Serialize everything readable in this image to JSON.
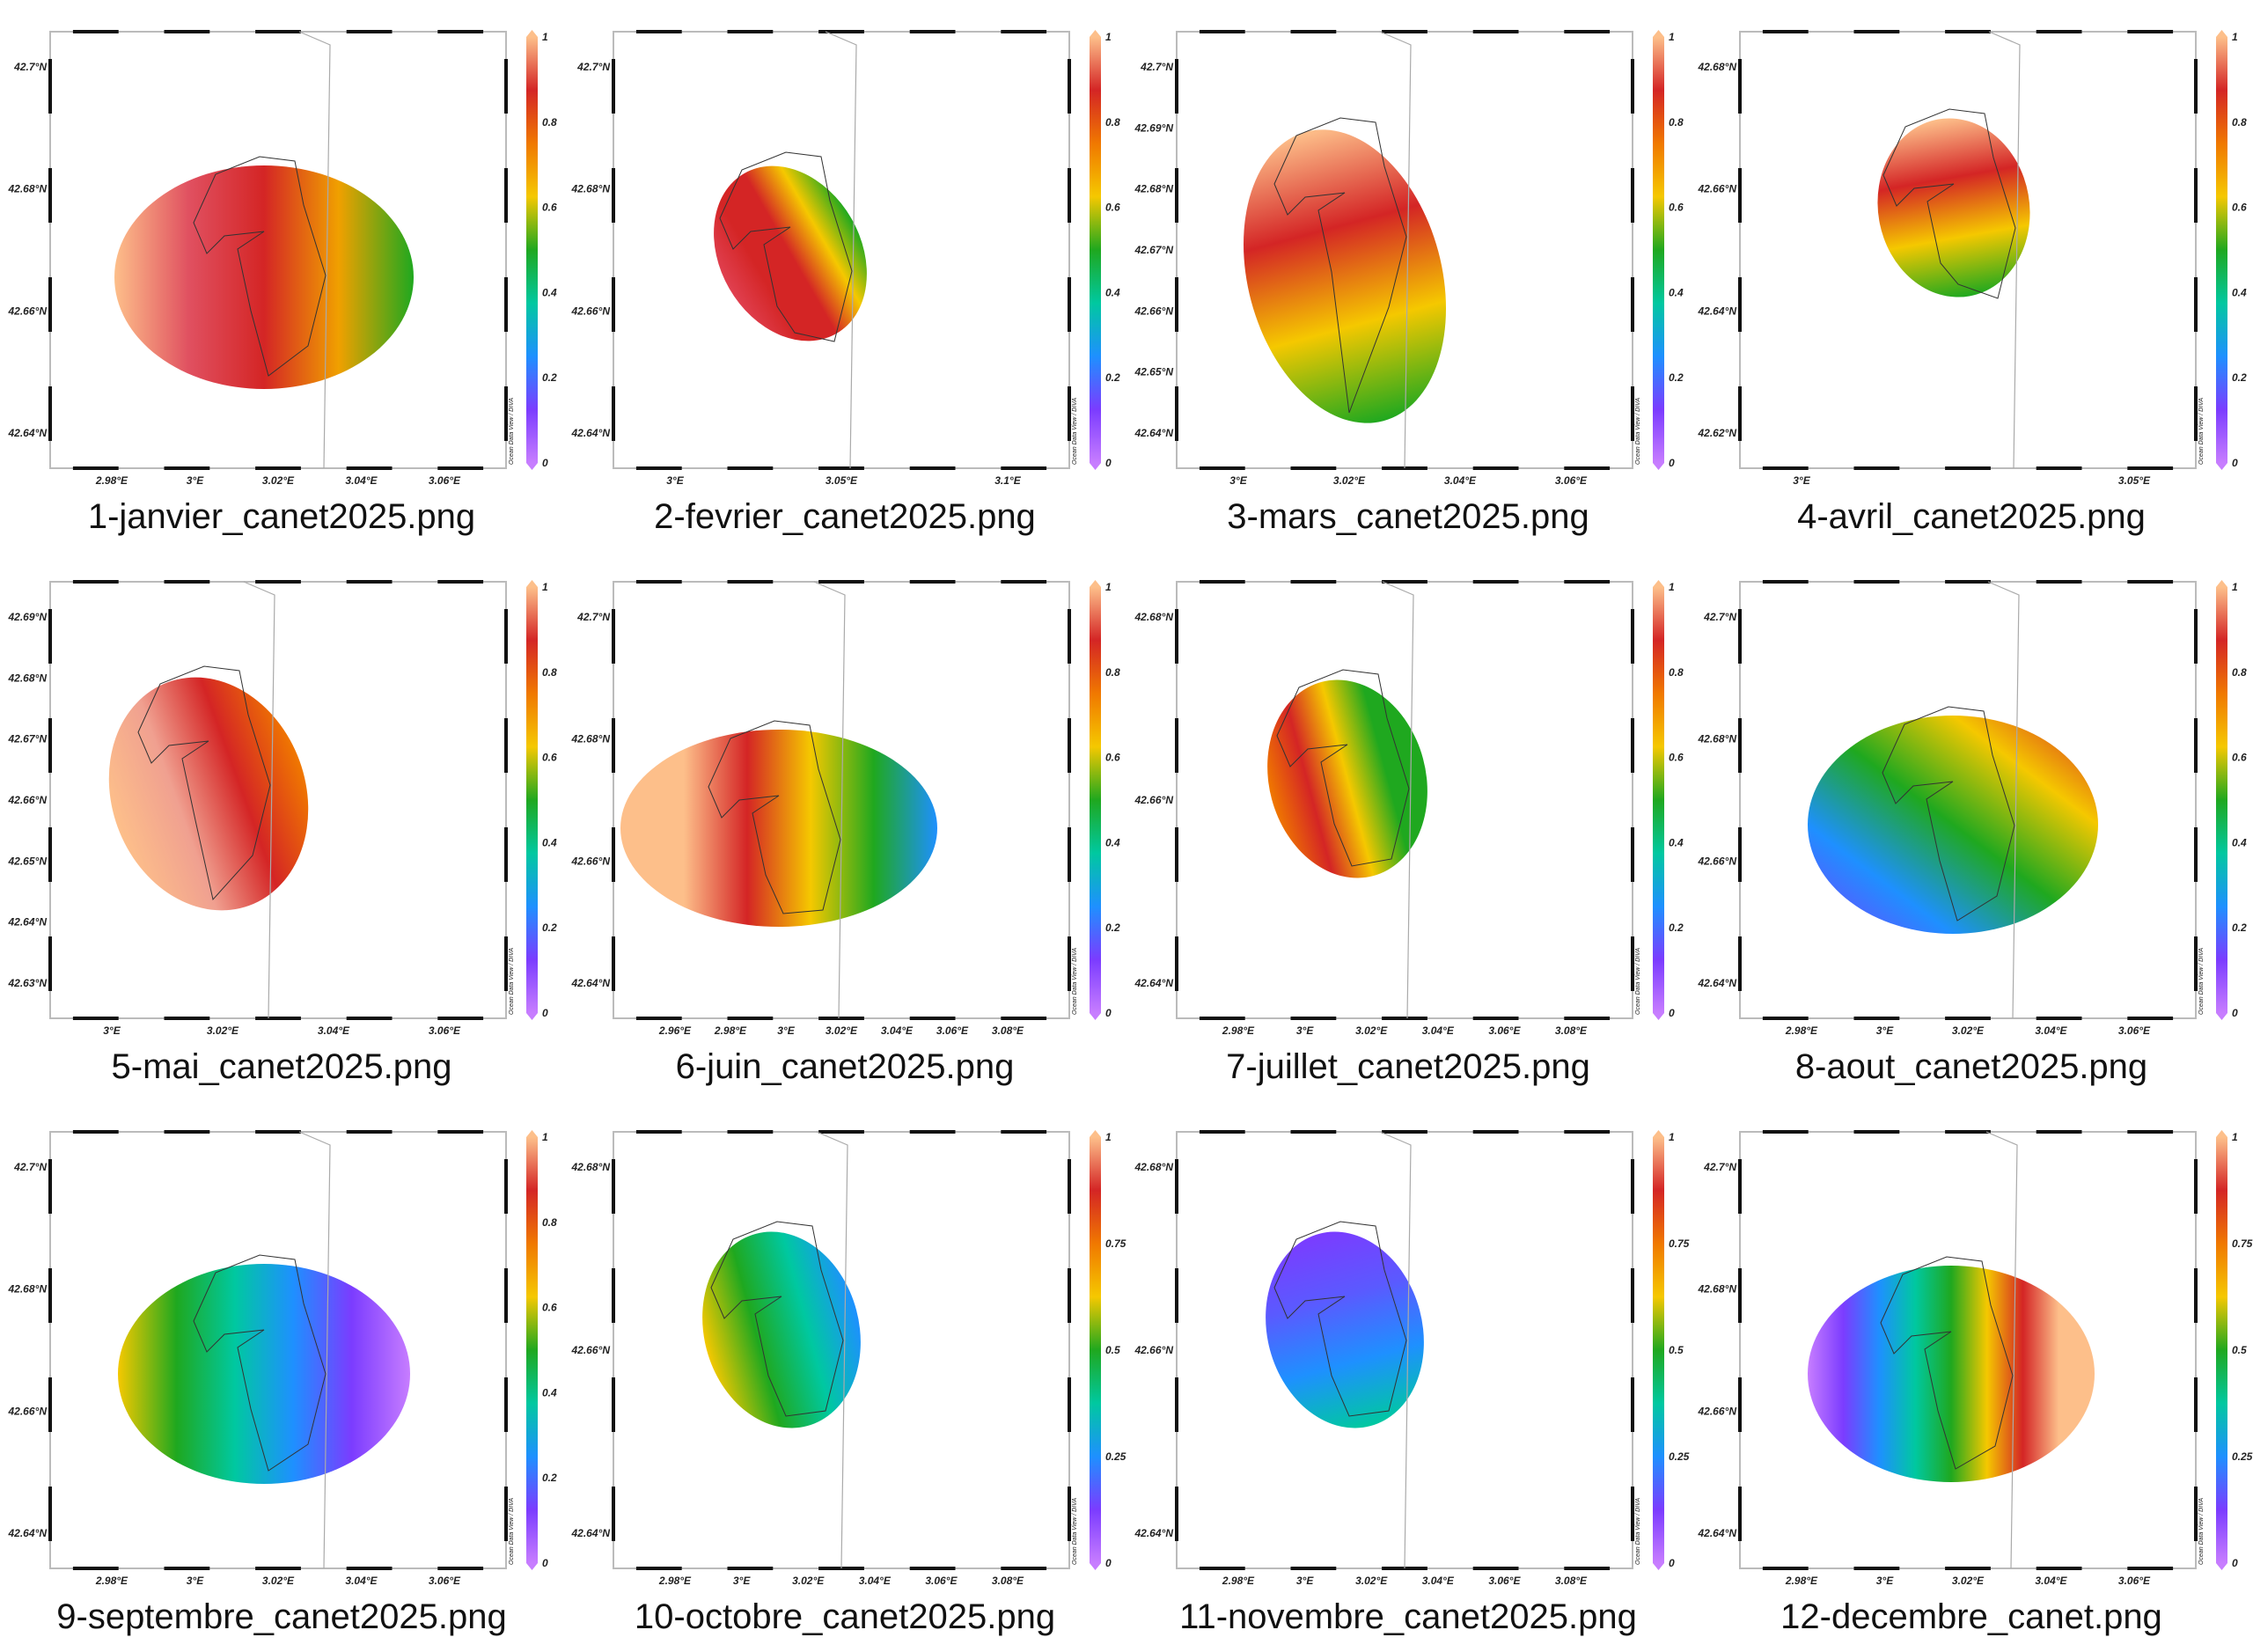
{
  "colorbar_colors": [
    "#c77dff",
    "#7b3cff",
    "#1e90ff",
    "#00c8a0",
    "#1fa81f",
    "#f5c800",
    "#f07800",
    "#d42525",
    "#fdbf8a"
  ],
  "credit": "Ocean Data View / DIVA",
  "panels": [
    {
      "caption": "1-janvier_canet2025.png",
      "lat": [
        "42.7°N",
        "42.68°N",
        "42.66°N",
        "42.64°N"
      ],
      "lon": [
        "2.98°E",
        "3°E",
        "3.02°E",
        "3.04°E",
        "3.06°E"
      ],
      "cbar": [
        "0",
        "0.2",
        "0.4",
        "0.6",
        "0.8",
        "1"
      ],
      "colors": [
        "#fdbf8a",
        "#e05060",
        "#d42525",
        "#f0a000",
        "#1fa81f"
      ]
    },
    {
      "caption": "2-fevrier_canet2025.png",
      "lat": [
        "42.7°N",
        "42.68°N",
        "42.66°N",
        "42.64°N"
      ],
      "lon": [
        "3°E",
        "3.05°E",
        "3.1°E"
      ],
      "cbar": [
        "0",
        "0.2",
        "0.4",
        "0.6",
        "0.8",
        "1"
      ],
      "colors": [
        "#e04050",
        "#d42525",
        "#d42525",
        "#f5c800",
        "#1fa81f"
      ]
    },
    {
      "caption": "3-mars_canet2025.png",
      "lat": [
        "42.7°N",
        "42.69°N",
        "42.68°N",
        "42.67°N",
        "42.66°N",
        "42.65°N",
        "42.64°N"
      ],
      "lon": [
        "3°E",
        "3.02°E",
        "3.04°E",
        "3.06°E"
      ],
      "cbar": [
        "0",
        "0.2",
        "0.4",
        "0.6",
        "0.8",
        "1"
      ],
      "colors": [
        "#fdbf8a",
        "#d42525",
        "#f5c800",
        "#1fa81f"
      ]
    },
    {
      "caption": "4-avril_canet2025.png",
      "lat": [
        "42.68°N",
        "42.66°N",
        "42.64°N",
        "42.62°N"
      ],
      "lon": [
        "3°E",
        "3.05°E"
      ],
      "cbar": [
        "0",
        "0.2",
        "0.4",
        "0.6",
        "0.8",
        "1"
      ],
      "colors": [
        "#fdbf8a",
        "#d42525",
        "#f5c800",
        "#1fa81f"
      ]
    },
    {
      "caption": "5-mai_canet2025.png",
      "lat": [
        "42.69°N",
        "42.68°N",
        "42.67°N",
        "42.66°N",
        "42.65°N",
        "42.64°N",
        "42.63°N"
      ],
      "lon": [
        "3°E",
        "3.02°E",
        "3.04°E",
        "3.06°E"
      ],
      "cbar": [
        "0",
        "0.2",
        "0.4",
        "0.6",
        "0.8",
        "1"
      ],
      "colors": [
        "#fdbf8a",
        "#f0a090",
        "#d42525",
        "#f07800"
      ]
    },
    {
      "caption": "6-juin_canet2025.png",
      "lat": [
        "42.7°N",
        "42.68°N",
        "42.66°N",
        "42.64°N"
      ],
      "lon": [
        "2.96°E",
        "2.98°E",
        "3°E",
        "3.02°E",
        "3.04°E",
        "3.06°E",
        "3.08°E"
      ],
      "cbar": [
        "0",
        "0.2",
        "0.4",
        "0.6",
        "0.8",
        "1"
      ],
      "colors": [
        "#fdbf8a",
        "#fdbf8a",
        "#d42525",
        "#f5c800",
        "#1fa81f",
        "#1e90ff"
      ]
    },
    {
      "caption": "7-juillet_canet2025.png",
      "lat": [
        "42.68°N",
        "42.66°N",
        "42.64°N"
      ],
      "lon": [
        "2.98°E",
        "3°E",
        "3.02°E",
        "3.04°E",
        "3.06°E",
        "3.08°E"
      ],
      "cbar": [
        "0",
        "0.2",
        "0.4",
        "0.6",
        "0.8",
        "1"
      ],
      "colors": [
        "#f07800",
        "#d42525",
        "#f5c800",
        "#1fa81f",
        "#1fa81f"
      ]
    },
    {
      "caption": "8-aout_canet2025.png",
      "lat": [
        "42.7°N",
        "42.68°N",
        "42.66°N",
        "42.64°N"
      ],
      "lon": [
        "2.98°E",
        "3°E",
        "3.02°E",
        "3.04°E",
        "3.06°E"
      ],
      "cbar": [
        "0",
        "0.2",
        "0.4",
        "0.6",
        "0.8",
        "1"
      ],
      "colors": [
        "#d42525",
        "#f5c800",
        "#1fa81f",
        "#1e90ff",
        "#7b3cff"
      ]
    },
    {
      "caption": "9-septembre_canet2025.png",
      "lat": [
        "42.7°N",
        "42.68°N",
        "42.66°N",
        "42.64°N"
      ],
      "lon": [
        "2.98°E",
        "3°E",
        "3.02°E",
        "3.04°E",
        "3.06°E"
      ],
      "cbar": [
        "0",
        "0.2",
        "0.4",
        "0.6",
        "0.8",
        "1"
      ],
      "colors": [
        "#f5c800",
        "#1fa81f",
        "#00c8a0",
        "#1e90ff",
        "#7b3cff",
        "#c77dff"
      ]
    },
    {
      "caption": "10-octobre_canet2025.png",
      "lat": [
        "42.68°N",
        "42.66°N",
        "42.64°N"
      ],
      "lon": [
        "2.98°E",
        "3°E",
        "3.02°E",
        "3.04°E",
        "3.06°E",
        "3.08°E"
      ],
      "cbar": [
        "0",
        "0.25",
        "0.5",
        "0.75",
        "1"
      ],
      "colors": [
        "#f5c800",
        "#1fa81f",
        "#00c8a0",
        "#1e90ff"
      ]
    },
    {
      "caption": "11-novembre_canet2025.png",
      "lat": [
        "42.68°N",
        "42.66°N",
        "42.64°N"
      ],
      "lon": [
        "2.98°E",
        "3°E",
        "3.02°E",
        "3.04°E",
        "3.06°E",
        "3.08°E"
      ],
      "cbar": [
        "0",
        "0.25",
        "0.5",
        "0.75",
        "1"
      ],
      "colors": [
        "#7b3cff",
        "#5a5aff",
        "#1e90ff",
        "#00c8a0"
      ]
    },
    {
      "caption": "12-decembre_canet.png",
      "lat": [
        "42.7°N",
        "42.68°N",
        "42.66°N",
        "42.64°N"
      ],
      "lon": [
        "2.98°E",
        "3°E",
        "3.02°E",
        "3.04°E",
        "3.06°E"
      ],
      "cbar": [
        "0",
        "0.25",
        "0.5",
        "0.75",
        "1"
      ],
      "colors": [
        "#c77dff",
        "#7b3cff",
        "#1e90ff",
        "#00c8a0",
        "#1fa81f",
        "#f5c800",
        "#d42525",
        "#fdbf8a",
        "#fdbf8a"
      ]
    }
  ]
}
